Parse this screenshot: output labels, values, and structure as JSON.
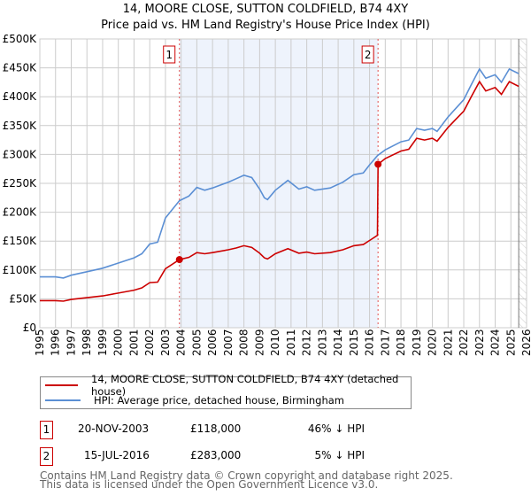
{
  "title": "14, MOORE CLOSE, SUTTON COLDFIELD, B74 4XY",
  "subtitle": "Price paid vs. HM Land Registry's House Price Index (HPI)",
  "chart_data": {
    "type": "line",
    "xlim": [
      1995,
      2026
    ],
    "ylim": [
      0,
      500000
    ],
    "yticks": [
      {
        "v": 0,
        "label": "£0"
      },
      {
        "v": 50000,
        "label": "£50K"
      },
      {
        "v": 100000,
        "label": "£100K"
      },
      {
        "v": 150000,
        "label": "£150K"
      },
      {
        "v": 200000,
        "label": "£200K"
      },
      {
        "v": 250000,
        "label": "£250K"
      },
      {
        "v": 300000,
        "label": "£300K"
      },
      {
        "v": 350000,
        "label": "£350K"
      },
      {
        "v": 400000,
        "label": "£400K"
      },
      {
        "v": 450000,
        "label": "£450K"
      },
      {
        "v": 500000,
        "label": "£500K"
      }
    ],
    "xticks": [
      "1995",
      "1996",
      "1997",
      "1998",
      "1999",
      "2000",
      "2001",
      "2002",
      "2003",
      "2004",
      "2005",
      "2006",
      "2007",
      "2008",
      "2009",
      "2010",
      "2011",
      "2012",
      "2013",
      "2014",
      "2015",
      "2016",
      "2017",
      "2018",
      "2019",
      "2020",
      "2021",
      "2022",
      "2023",
      "2024",
      "2025",
      "2026"
    ],
    "grid": true,
    "colors": {
      "property": "#cc0000",
      "hpi": "#5b8fd4",
      "shade": "#eef3fc"
    },
    "series": [
      {
        "name": "14, MOORE CLOSE, SUTTON COLDFIELD, B74 4XY (detached house)",
        "points": [
          [
            1995,
            47000
          ],
          [
            1996,
            47000
          ],
          [
            1996.5,
            46000
          ],
          [
            1997,
            49000
          ],
          [
            1998,
            52000
          ],
          [
            1999,
            55000
          ],
          [
            2000,
            60000
          ],
          [
            2001,
            65000
          ],
          [
            2001.5,
            69000
          ],
          [
            2002,
            78000
          ],
          [
            2002.5,
            79000
          ],
          [
            2003,
            102000
          ],
          [
            2003.89,
            118000
          ],
          [
            2004.5,
            122000
          ],
          [
            2005,
            130000
          ],
          [
            2005.5,
            128000
          ],
          [
            2006,
            130000
          ],
          [
            2007,
            135000
          ],
          [
            2007.5,
            138000
          ],
          [
            2008,
            142000
          ],
          [
            2008.5,
            139000
          ],
          [
            2009,
            129000
          ],
          [
            2009.3,
            121000
          ],
          [
            2009.5,
            119000
          ],
          [
            2010,
            128000
          ],
          [
            2010.8,
            137000
          ],
          [
            2011.5,
            129000
          ],
          [
            2012,
            131000
          ],
          [
            2012.5,
            128000
          ],
          [
            2013.5,
            130000
          ],
          [
            2014.3,
            135000
          ],
          [
            2015,
            142000
          ],
          [
            2015.6,
            144000
          ],
          [
            2016,
            151000
          ],
          [
            2016.5,
            160000
          ],
          [
            2016.54,
            283000
          ],
          [
            2017,
            293000
          ],
          [
            2018,
            306000
          ],
          [
            2018.5,
            309000
          ],
          [
            2019,
            328000
          ],
          [
            2019.5,
            325000
          ],
          [
            2020,
            328000
          ],
          [
            2020.3,
            323000
          ],
          [
            2021,
            347000
          ],
          [
            2021.5,
            361000
          ],
          [
            2022,
            375000
          ],
          [
            2022.5,
            401000
          ],
          [
            2023,
            426000
          ],
          [
            2023.4,
            410000
          ],
          [
            2024,
            416000
          ],
          [
            2024.4,
            404000
          ],
          [
            2024.9,
            426000
          ],
          [
            2025.5,
            418000
          ]
        ]
      },
      {
        "name": "HPI: Average price, detached house, Birmingham",
        "points": [
          [
            1995,
            88000
          ],
          [
            1996,
            88000
          ],
          [
            1996.5,
            86000
          ],
          [
            1997,
            91000
          ],
          [
            1998,
            97000
          ],
          [
            1999,
            103000
          ],
          [
            2000,
            112000
          ],
          [
            2001,
            121000
          ],
          [
            2001.5,
            128000
          ],
          [
            2002,
            145000
          ],
          [
            2002.5,
            148000
          ],
          [
            2003,
            190000
          ],
          [
            2003.89,
            220000
          ],
          [
            2004.5,
            228000
          ],
          [
            2005,
            243000
          ],
          [
            2005.5,
            238000
          ],
          [
            2006,
            242000
          ],
          [
            2007,
            252000
          ],
          [
            2007.5,
            258000
          ],
          [
            2008,
            264000
          ],
          [
            2008.5,
            260000
          ],
          [
            2009,
            240000
          ],
          [
            2009.3,
            225000
          ],
          [
            2009.5,
            222000
          ],
          [
            2010,
            238000
          ],
          [
            2010.8,
            255000
          ],
          [
            2011.5,
            240000
          ],
          [
            2012,
            244000
          ],
          [
            2012.5,
            238000
          ],
          [
            2013.5,
            242000
          ],
          [
            2014.3,
            252000
          ],
          [
            2015,
            265000
          ],
          [
            2015.6,
            268000
          ],
          [
            2016,
            282000
          ],
          [
            2016.5,
            298000
          ],
          [
            2017,
            308000
          ],
          [
            2018,
            322000
          ],
          [
            2018.5,
            325000
          ],
          [
            2019,
            345000
          ],
          [
            2019.5,
            342000
          ],
          [
            2020,
            345000
          ],
          [
            2020.3,
            340000
          ],
          [
            2021,
            365000
          ],
          [
            2021.5,
            380000
          ],
          [
            2022,
            395000
          ],
          [
            2022.5,
            422000
          ],
          [
            2023,
            448000
          ],
          [
            2023.4,
            432000
          ],
          [
            2024,
            438000
          ],
          [
            2024.4,
            425000
          ],
          [
            2024.9,
            448000
          ],
          [
            2025.5,
            440000
          ]
        ]
      }
    ],
    "sales": [
      {
        "label": "1",
        "x": 2003.89,
        "y": 118000
      },
      {
        "label": "2",
        "x": 2016.54,
        "y": 283000
      }
    ],
    "data_end": 2025.5
  },
  "legend": {
    "property": "14, MOORE CLOSE, SUTTON COLDFIELD, B74 4XY (detached house)",
    "hpi": "HPI: Average price, detached house, Birmingham"
  },
  "transactions": [
    {
      "num": "1",
      "date": "20-NOV-2003",
      "price": "£118,000",
      "hpi": "46% ↓ HPI"
    },
    {
      "num": "2",
      "date": "15-JUL-2016",
      "price": "£283,000",
      "hpi": "5% ↓ HPI"
    }
  ],
  "footer": {
    "line1": "Contains HM Land Registry data © Crown copyright and database right 2025.",
    "line2": "This data is licensed under the Open Government Licence v3.0."
  }
}
